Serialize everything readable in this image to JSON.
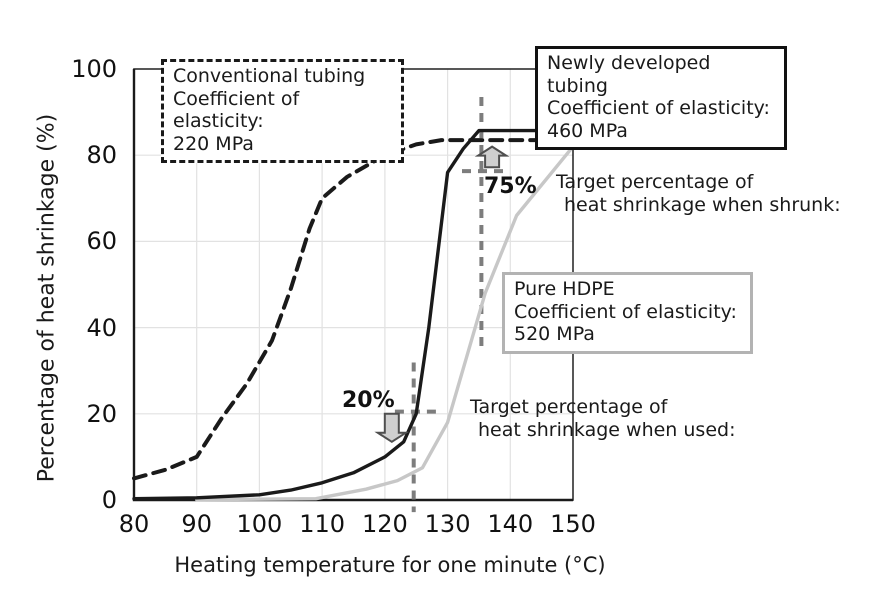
{
  "chart_data": {
    "type": "line",
    "title": "",
    "xlabel": "Heating temperature for one minute (°C)",
    "ylabel": "Percentage of heat shrinkage (%)",
    "xlim": [
      80,
      150
    ],
    "ylim": [
      0,
      100
    ],
    "xticks": [
      80,
      90,
      100,
      110,
      120,
      130,
      140,
      150
    ],
    "yticks": [
      0,
      20,
      40,
      60,
      80,
      100
    ],
    "grid": true,
    "legend_position": "annotated boxes on plot",
    "series": [
      {
        "name": "Conventional tubing",
        "coefficient_of_elasticity": "220 MPa",
        "line": "dashed",
        "color": "#1a1a1a",
        "points": [
          [
            80,
            5
          ],
          [
            85,
            7
          ],
          [
            90,
            10
          ],
          [
            94,
            19
          ],
          [
            98,
            27
          ],
          [
            102,
            37
          ],
          [
            105,
            49
          ],
          [
            108,
            63
          ],
          [
            110,
            70
          ],
          [
            114,
            75
          ],
          [
            120,
            80
          ],
          [
            125,
            82.5
          ],
          [
            129,
            83.5
          ],
          [
            150,
            83.5
          ]
        ]
      },
      {
        "name": "Pure HDPE",
        "coefficient_of_elasticity": "520 MPa",
        "line": "solid",
        "color": "#c7c7c7",
        "points": [
          [
            90,
            0.1
          ],
          [
            109,
            0.3
          ],
          [
            117,
            2.5
          ],
          [
            122,
            4.5
          ],
          [
            126,
            7.5
          ],
          [
            130,
            18
          ],
          [
            133,
            33
          ],
          [
            136,
            48
          ],
          [
            141,
            66
          ],
          [
            150,
            82
          ]
        ]
      },
      {
        "name": "Newly developed tubing",
        "coefficient_of_elasticity": "460 MPa",
        "line": "solid",
        "color": "#1a1a1a",
        "points": [
          [
            80,
            0.3
          ],
          [
            90,
            0.5
          ],
          [
            100,
            1.2
          ],
          [
            105,
            2.3
          ],
          [
            110,
            4
          ],
          [
            115,
            6.3
          ],
          [
            120,
            10
          ],
          [
            123,
            13.5
          ],
          [
            125,
            20
          ],
          [
            127,
            40
          ],
          [
            130,
            76
          ],
          [
            132.5,
            81.5
          ],
          [
            135,
            85.7
          ],
          [
            150,
            85.7
          ]
        ]
      }
    ],
    "targets": [
      {
        "value": 75,
        "label": "75%",
        "crosshair": {
          "x": 135.4,
          "v_top": 93.5,
          "v_bottom": 34.2,
          "y": 76.3,
          "h_left": 132.3,
          "h_right": 139
        },
        "arrow": {
          "dir": "up",
          "x": 137.1,
          "tip_y": 82,
          "tail_y": 77.2
        }
      },
      {
        "value": 20,
        "label": "20%",
        "crosshair": {
          "x": 124.6,
          "v_top": 31.9,
          "v_bottom": -2.8,
          "y": 20.5,
          "h_left": 121.6,
          "h_right": 129
        },
        "arrow": {
          "dir": "down",
          "x": 121.1,
          "tip_y": 13.5,
          "tail_y": 20
        }
      }
    ]
  },
  "annotations": {
    "conventional": {
      "line1": "Conventional tubing",
      "line2": "Coefficient of elasticity:",
      "line3": "220 MPa"
    },
    "newly": {
      "line1": "Newly developed tubing",
      "line2": "Coefficient of elasticity:",
      "line3": "460 MPa"
    },
    "hdpe": {
      "line1": "Pure HDPE",
      "line2": "Coefficient of elasticity:",
      "line3": "520 MPa"
    },
    "target_shrunk": {
      "value": "75%",
      "line1": "Target percentage of",
      "line2": "heat shrinkage when shrunk:"
    },
    "target_used": {
      "value": "20%",
      "line1": "Target percentage of",
      "line2": "heat shrinkage when used:"
    }
  },
  "colors": {
    "background": "#ffffff",
    "grid": "#e2e2e2",
    "axis": "#1a1a1a",
    "border": "#2e2e2e",
    "crosshair": "#7d7d7d",
    "arrow_fill": "#cfcfcf",
    "arrow_stroke": "#4f4f4f",
    "hdpe_gray": "#c7c7c7",
    "gray_box_border": "#b3b3b3"
  }
}
